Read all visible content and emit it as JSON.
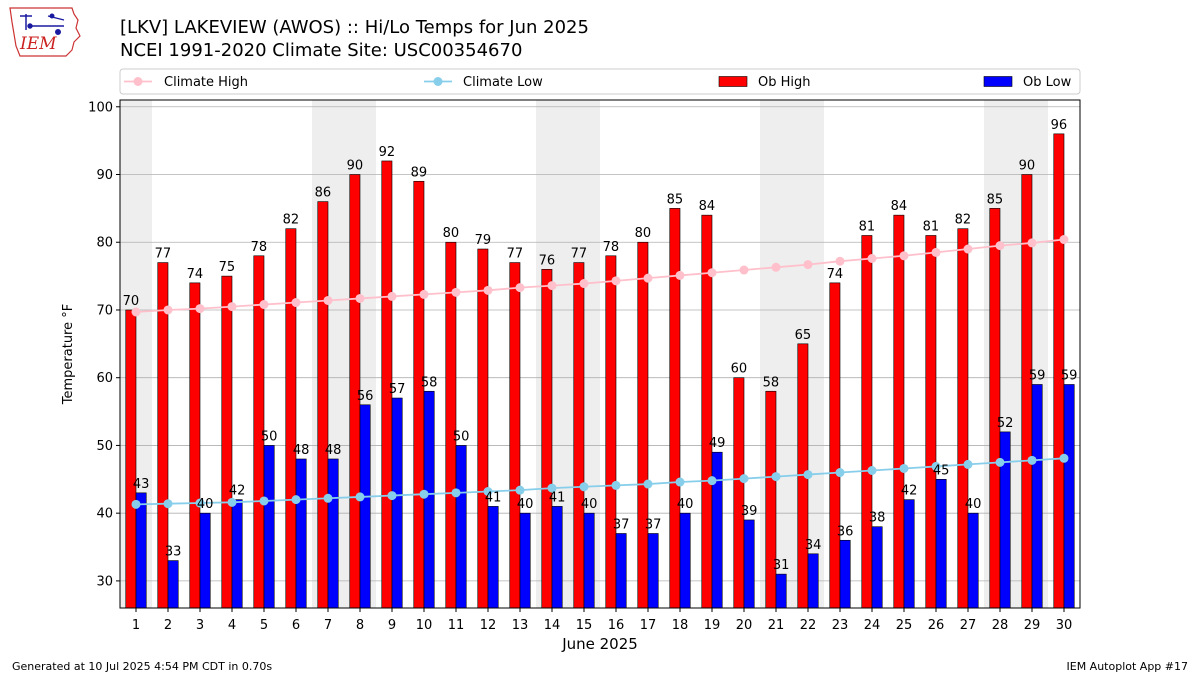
{
  "header": {
    "title_line1": "[LKV] LAKEVIEW (AWOS) :: Hi/Lo Temps for Jun 2025",
    "title_line2": "NCEI 1991-2020 Climate Site: USC00354670",
    "logo_text": "IEM"
  },
  "footer": {
    "left": "Generated at 10 Jul 2025 4:54 PM CDT in 0.70s",
    "right": "IEM Autoplot App #17"
  },
  "colors": {
    "ob_high": "#ff0000",
    "ob_low": "#0000ff",
    "climate_high": "#ffc0cb",
    "climate_low": "#87ceeb",
    "weekend_shade": "#eeeeee",
    "grid": "#b0b0b0"
  },
  "chart_data": {
    "type": "bar",
    "xlabel": "June 2025",
    "ylabel": "Temperature °F",
    "ylim": [
      26,
      101
    ],
    "yticks": [
      30,
      40,
      50,
      60,
      70,
      80,
      90,
      100
    ],
    "grid": "horizontal",
    "legend_position": "top",
    "categories": [
      "1",
      "2",
      "3",
      "4",
      "5",
      "6",
      "7",
      "8",
      "9",
      "10",
      "11",
      "12",
      "13",
      "14",
      "15",
      "16",
      "17",
      "18",
      "19",
      "20",
      "21",
      "22",
      "23",
      "24",
      "25",
      "26",
      "27",
      "28",
      "29",
      "30"
    ],
    "weekend_days": [
      1,
      7,
      8,
      14,
      15,
      21,
      22,
      28,
      29
    ],
    "series": [
      {
        "name": "Ob High",
        "kind": "bar",
        "values": [
          70,
          77,
          74,
          75,
          78,
          82,
          86,
          90,
          92,
          89,
          80,
          79,
          77,
          76,
          77,
          78,
          80,
          85,
          84,
          60,
          58,
          65,
          74,
          81,
          84,
          81,
          82,
          85,
          90,
          96
        ]
      },
      {
        "name": "Ob Low",
        "kind": "bar",
        "values": [
          43,
          33,
          40,
          42,
          50,
          48,
          48,
          56,
          57,
          58,
          50,
          41,
          40,
          41,
          40,
          37,
          37,
          40,
          49,
          39,
          31,
          34,
          36,
          38,
          42,
          45,
          40,
          52,
          59,
          59
        ]
      },
      {
        "name": "Climate High",
        "kind": "line",
        "values": [
          69.7,
          70.0,
          70.2,
          70.5,
          70.8,
          71.1,
          71.4,
          71.7,
          72.0,
          72.3,
          72.6,
          72.9,
          73.3,
          73.6,
          73.9,
          74.3,
          74.7,
          75.1,
          75.5,
          75.9,
          76.3,
          76.7,
          77.2,
          77.6,
          78.0,
          78.5,
          79.0,
          79.5,
          79.9,
          80.4
        ]
      },
      {
        "name": "Climate Low",
        "kind": "line",
        "values": [
          41.3,
          41.4,
          41.5,
          41.6,
          41.8,
          42.0,
          42.2,
          42.4,
          42.6,
          42.8,
          43.0,
          43.2,
          43.4,
          43.7,
          43.9,
          44.1,
          44.3,
          44.6,
          44.8,
          45.1,
          45.4,
          45.7,
          46.0,
          46.3,
          46.6,
          46.9,
          47.2,
          47.5,
          47.8,
          48.1
        ]
      }
    ]
  }
}
